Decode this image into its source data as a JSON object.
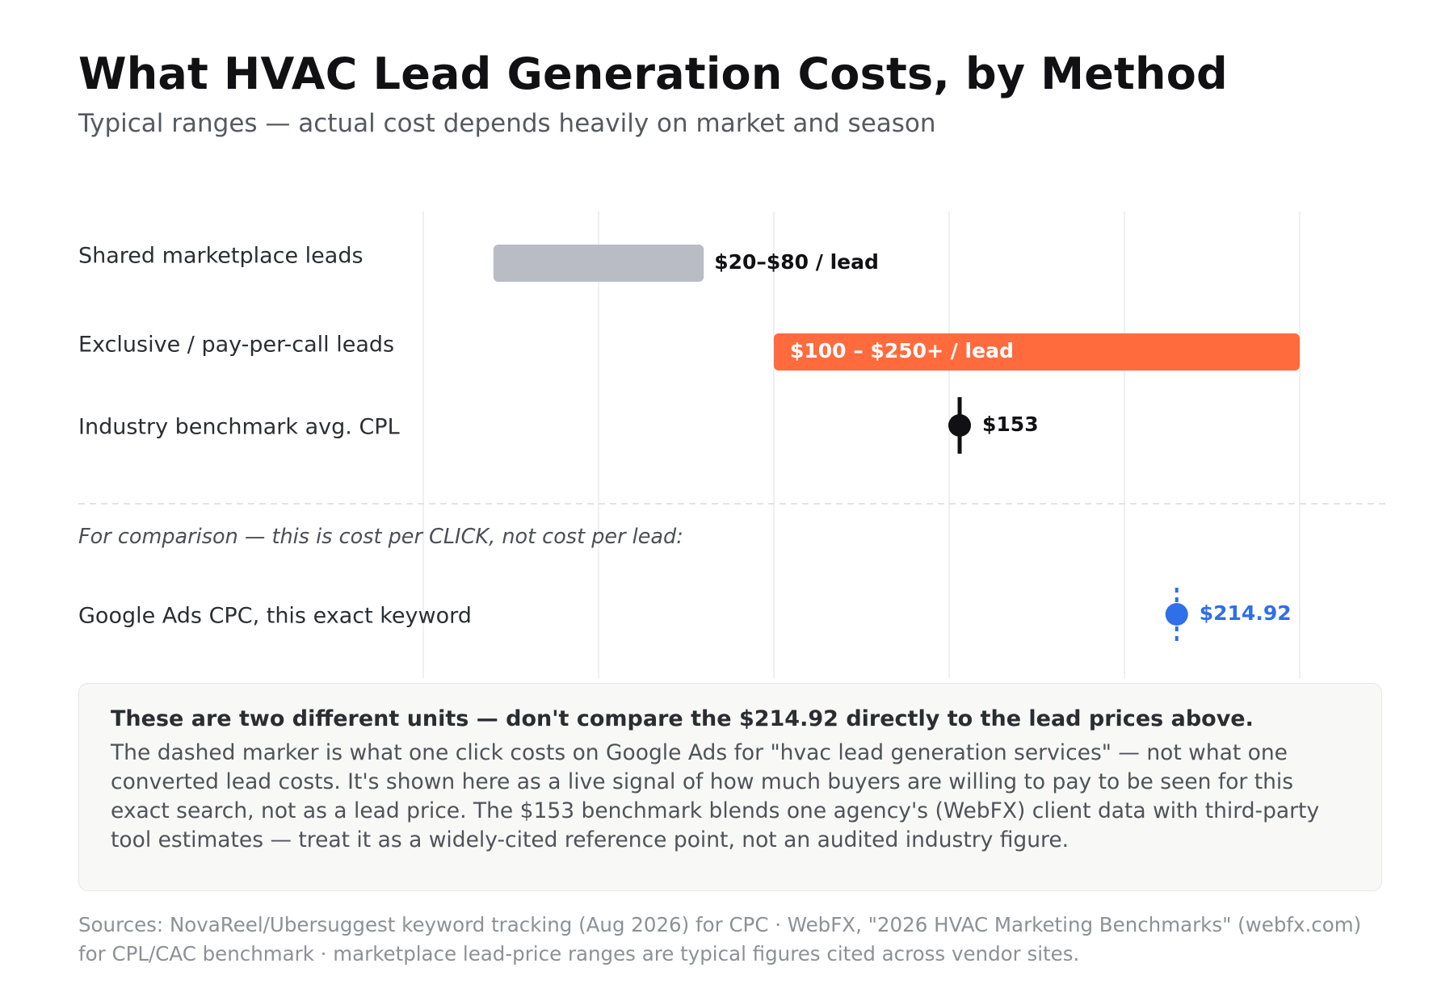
{
  "header": {
    "title": "What HVAC Lead Generation Costs, by Method",
    "subtitle": "Typical ranges — actual cost depends heavily on market and season"
  },
  "chart_data": {
    "type": "range",
    "title": "What HVAC Lead Generation Costs, by Method",
    "subtitle": "Typical ranges — actual cost depends heavily on market and season",
    "xlim": [
      0,
      300
    ],
    "grid": true,
    "x_tick_values": [
      0,
      50,
      100,
      150,
      200,
      250
    ],
    "tick_labels_shown": false,
    "rows": [
      {
        "category": "Shared marketplace leads",
        "low": 20,
        "high": 80,
        "label": "$20–$80 / lead",
        "color": "#b9bcc5",
        "marker": "bar"
      },
      {
        "category": "Exclusive / pay-per-call leads",
        "low": 100,
        "high": 250,
        "label": "$100 – $250+ / lead",
        "color": "#ff6b3d",
        "marker": "bar"
      },
      {
        "category": "Industry benchmark avg. CPL",
        "value": 153,
        "label": "$153",
        "color": "#111114",
        "marker": "point"
      }
    ],
    "comparison_note": "For comparison — this is cost per CLICK, not cost per lead:",
    "comparison_rows": [
      {
        "category": "Google Ads CPC, this exact keyword",
        "value": 214.92,
        "label": "$214.92",
        "color": "#2f6fe8",
        "marker": "dashed-point"
      }
    ]
  },
  "callout": {
    "heading": "These are two different units — don't compare the $214.92 directly to the lead prices above.",
    "body": "The dashed marker is what one click costs on Google Ads for \"hvac lead generation services\" — not what one converted lead costs. It's shown here as a live signal of how much buyers are willing to pay to be seen for this exact search, not as a lead price. The $153 benchmark blends one agency's (WebFX) client data with third-party tool estimates — treat it as a widely-cited reference point, not an audited industry figure."
  },
  "sources": "Sources: NovaReel/Ubersuggest keyword tracking (Aug 2026) for CPC · WebFX, \"2026 HVAC Marketing Benchmarks\" (webfx.com) for CPL/CAC benchmark · marketplace lead-price ranges are typical figures cited across vendor sites."
}
